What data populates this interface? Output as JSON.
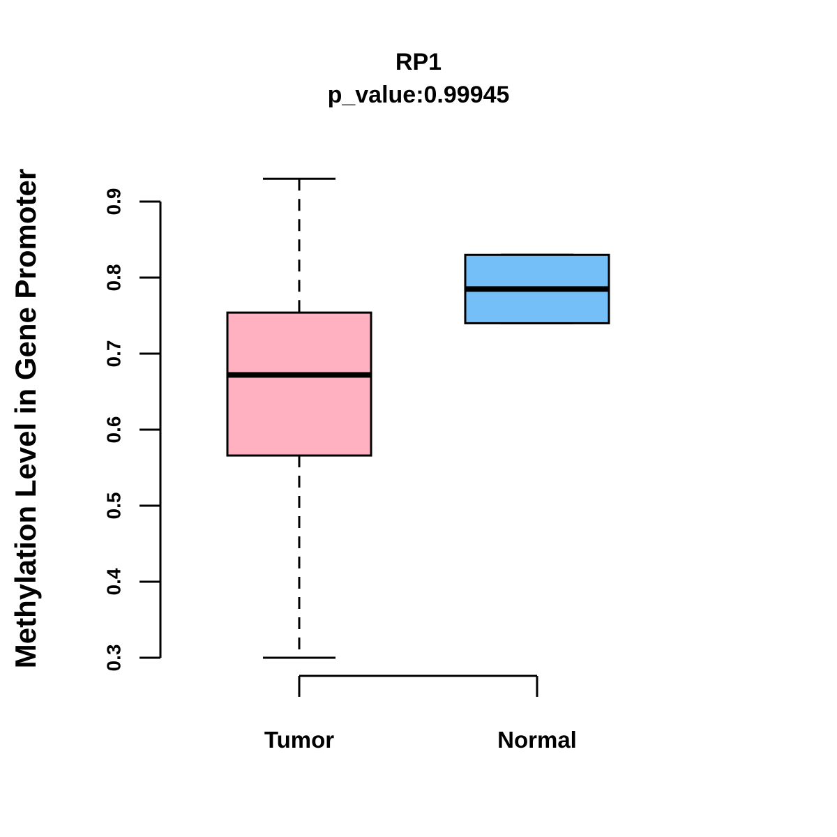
{
  "chart_data": {
    "type": "boxplot",
    "title": "RP1",
    "subtitle": "p_value:0.99945",
    "ylabel": "Methylation Level in Gene Promoter",
    "xlabel": "",
    "categories": [
      "Tumor",
      "Normal"
    ],
    "y_ticks": [
      0.3,
      0.4,
      0.5,
      0.6,
      0.7,
      0.8,
      0.9
    ],
    "ylim": [
      0.3,
      0.9
    ],
    "legend": "none",
    "grid": false,
    "series": [
      {
        "name": "Tumor",
        "color": "#FFB0C1",
        "whisker_low": 0.3,
        "q1": 0.566,
        "median": 0.672,
        "q3": 0.754,
        "whisker_high": 0.93
      },
      {
        "name": "Normal",
        "color": "#75BFF8",
        "whisker_low": 0.74,
        "q1": 0.74,
        "median": 0.785,
        "q3": 0.83,
        "whisker_high": 0.83
      }
    ],
    "colors": {
      "stroke": "#000000",
      "background": "#FFFFFF"
    }
  }
}
